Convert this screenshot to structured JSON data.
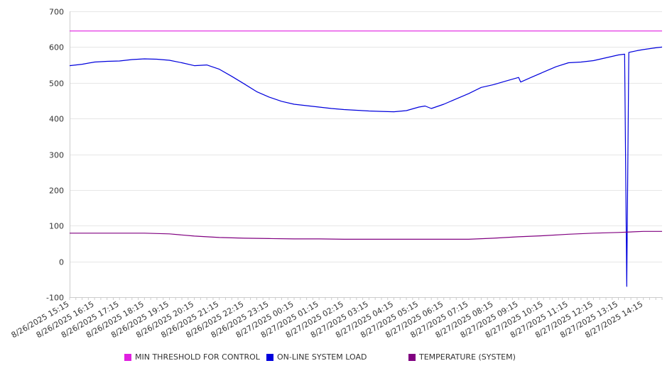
{
  "chart_data": {
    "type": "line",
    "title": "",
    "xlabel": "",
    "ylabel": "",
    "ylim": [
      -100,
      700
    ],
    "yticks": [
      -100,
      0,
      100,
      200,
      300,
      400,
      500,
      600,
      700
    ],
    "grid": "horizontal",
    "legend_position": "bottom",
    "x_tick_labels": [
      "8/26/2025 15:15",
      "8/26/2025 16:15",
      "8/26/2025 17:15",
      "8/26/2025 18:15",
      "8/26/2025 19:15",
      "8/26/2025 20:15",
      "8/26/2025 21:15",
      "8/26/2025 22:15",
      "8/26/2025 23:15",
      "8/27/2025 00:15",
      "8/27/2025 01:15",
      "8/27/2025 02:15",
      "8/27/2025 03:15",
      "8/27/2025 04:15",
      "8/27/2025 05:15",
      "8/27/2025 06:15",
      "8/27/2025 07:15",
      "8/27/2025 08:15",
      "8/27/2025 09:15",
      "8/27/2025 10:15",
      "8/27/2025 11:15",
      "8/27/2025 12:15",
      "8/27/2025 13:15",
      "8/27/2025 14:15"
    ],
    "x_range": [
      "8/26/2025 15:15",
      "8/27/2025 15:00"
    ],
    "series": [
      {
        "name": "MIN THRESHOLD FOR CONTROL",
        "color": "#e020e0",
        "x": [
          "8/26/2025 15:15",
          "8/27/2025 15:00"
        ],
        "values": [
          645,
          645
        ]
      },
      {
        "name": "ON-LINE SYSTEM LOAD",
        "color": "#0000dd",
        "x": [
          "8/26/2025 15:15",
          "8/26/2025 15:45",
          "8/26/2025 16:15",
          "8/26/2025 16:45",
          "8/26/2025 17:15",
          "8/26/2025 17:45",
          "8/26/2025 18:15",
          "8/26/2025 18:45",
          "8/26/2025 19:15",
          "8/26/2025 19:45",
          "8/26/2025 20:15",
          "8/26/2025 20:45",
          "8/26/2025 21:15",
          "8/26/2025 21:45",
          "8/26/2025 22:15",
          "8/26/2025 22:45",
          "8/26/2025 23:15",
          "8/26/2025 23:45",
          "8/27/2025 00:15",
          "8/27/2025 00:45",
          "8/27/2025 01:15",
          "8/27/2025 01:45",
          "8/27/2025 02:15",
          "8/27/2025 02:45",
          "8/27/2025 03:15",
          "8/27/2025 03:45",
          "8/27/2025 04:15",
          "8/27/2025 04:45",
          "8/27/2025 05:15",
          "8/27/2025 05:30",
          "8/27/2025 05:45",
          "8/27/2025 06:15",
          "8/27/2025 06:45",
          "8/27/2025 07:15",
          "8/27/2025 07:45",
          "8/27/2025 08:15",
          "8/27/2025 08:45",
          "8/27/2025 09:15",
          "8/27/2025 09:20",
          "8/27/2025 09:45",
          "8/27/2025 10:15",
          "8/27/2025 10:45",
          "8/27/2025 11:15",
          "8/27/2025 11:45",
          "8/27/2025 12:15",
          "8/27/2025 12:45",
          "8/27/2025 13:15",
          "8/27/2025 13:30",
          "8/27/2025 13:35",
          "8/27/2025 13:40",
          "8/27/2025 14:00",
          "8/27/2025 14:15",
          "8/27/2025 14:45",
          "8/27/2025 15:00"
        ],
        "values": [
          548,
          552,
          558,
          560,
          561,
          565,
          567,
          566,
          563,
          556,
          548,
          550,
          538,
          518,
          497,
          475,
          460,
          448,
          440,
          436,
          432,
          428,
          425,
          423,
          421,
          420,
          419,
          422,
          432,
          435,
          428,
          440,
          455,
          470,
          487,
          495,
          505,
          515,
          502,
          515,
          530,
          545,
          556,
          558,
          562,
          570,
          578,
          580,
          -70,
          585,
          590,
          593,
          598,
          600
        ]
      },
      {
        "name": "TEMPERATURE (SYSTEM)",
        "color": "#800080",
        "x": [
          "8/26/2025 15:15",
          "8/26/2025 16:15",
          "8/26/2025 17:15",
          "8/26/2025 18:15",
          "8/26/2025 19:15",
          "8/26/2025 20:15",
          "8/26/2025 21:15",
          "8/26/2025 22:15",
          "8/26/2025 23:15",
          "8/27/2025 00:15",
          "8/27/2025 01:15",
          "8/27/2025 02:15",
          "8/27/2025 03:15",
          "8/27/2025 04:15",
          "8/27/2025 05:15",
          "8/27/2025 06:15",
          "8/27/2025 07:15",
          "8/27/2025 08:15",
          "8/27/2025 09:15",
          "8/27/2025 10:15",
          "8/27/2025 11:15",
          "8/27/2025 12:15",
          "8/27/2025 13:15",
          "8/27/2025 14:15",
          "8/27/2025 15:00"
        ],
        "values": [
          79,
          79,
          79,
          79,
          77,
          71,
          67,
          65,
          64,
          63,
          63,
          62,
          62,
          62,
          62,
          62,
          62,
          65,
          69,
          72,
          76,
          79,
          81,
          84,
          84
        ]
      }
    ]
  }
}
